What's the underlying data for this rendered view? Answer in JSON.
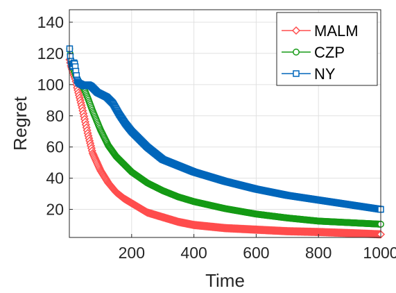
{
  "chart_data": {
    "type": "line",
    "xlabel": "Time",
    "ylabel": "Regret",
    "xlim": [
      0,
      1000
    ],
    "ylim": [
      2,
      148
    ],
    "xticks": [
      200,
      400,
      600,
      800,
      1000
    ],
    "yticks": [
      20,
      40,
      60,
      80,
      100,
      120,
      140
    ],
    "grid": true,
    "legend_position": "top-right",
    "series": [
      {
        "name": "MALM",
        "color": "#ff4d4d",
        "marker": "diamond",
        "x": [
          1,
          5,
          10,
          15,
          20,
          25,
          30,
          40,
          50,
          60,
          75,
          100,
          125,
          150,
          175,
          200,
          250,
          300,
          350,
          400,
          500,
          600,
          700,
          800,
          900,
          1000
        ],
        "y": [
          116,
          112,
          109,
          106,
          103,
          98,
          94,
          86,
          77,
          68,
          56,
          45,
          37,
          31,
          27,
          24,
          18,
          15,
          12,
          10,
          8,
          7,
          6,
          5.5,
          4.8,
          4
        ]
      },
      {
        "name": "CZP",
        "color": "#159a15",
        "marker": "circle",
        "x": [
          1,
          5,
          10,
          15,
          20,
          30,
          40,
          50,
          60,
          75,
          100,
          125,
          150,
          175,
          200,
          250,
          300,
          350,
          400,
          500,
          600,
          700,
          800,
          900,
          1000
        ],
        "y": [
          123,
          116,
          112,
          109,
          106,
          102,
          100,
          96,
          91,
          83,
          71,
          61,
          54,
          49,
          44,
          37,
          32,
          28,
          25,
          20.5,
          17,
          14.5,
          12.5,
          11.5,
          10.5
        ]
      },
      {
        "name": "NY",
        "color": "#0066bb",
        "marker": "square",
        "x": [
          1,
          3,
          5,
          8,
          10,
          12,
          15,
          18,
          20,
          25,
          30,
          40,
          50,
          60,
          70,
          80,
          90,
          100,
          120,
          140,
          160,
          180,
          200,
          250,
          300,
          350,
          400,
          500,
          600,
          700,
          800,
          900,
          1000
        ],
        "y": [
          123,
          118,
          115,
          112,
          111,
          113,
          114,
          113,
          110,
          103,
          101,
          100,
          99,
          100,
          99,
          97,
          95,
          94,
          92,
          88,
          81,
          75,
          70,
          60,
          52,
          48,
          44,
          38,
          33,
          29,
          26,
          23,
          20
        ]
      }
    ]
  }
}
